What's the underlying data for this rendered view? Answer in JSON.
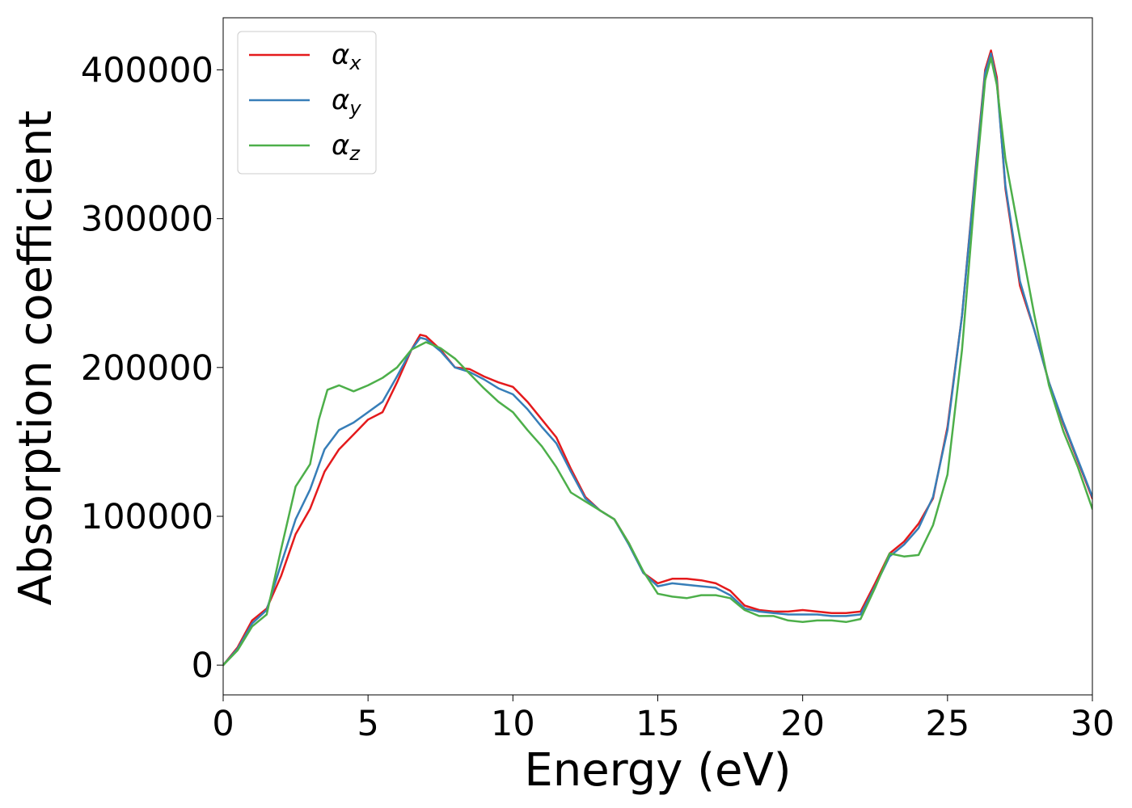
{
  "chart_data": {
    "type": "line",
    "title": "",
    "xlabel": "Energy (eV)",
    "ylabel": "Absorption coefficient",
    "xlim": [
      0,
      30
    ],
    "ylim": [
      -20000,
      435000
    ],
    "xticks": [
      0,
      5,
      10,
      15,
      20,
      25,
      30
    ],
    "yticks": [
      0,
      100000,
      200000,
      300000,
      400000
    ],
    "grid": false,
    "legend_position": "top-left",
    "series": [
      {
        "name": "α_x",
        "legend_base": "α",
        "legend_sub": "x",
        "color": "#e41a1c",
        "x": [
          0,
          0.5,
          1.0,
          1.5,
          2.0,
          2.5,
          3.0,
          3.5,
          4.0,
          4.5,
          5.0,
          5.5,
          6.0,
          6.5,
          6.8,
          7.0,
          7.5,
          8.0,
          8.5,
          9.0,
          9.5,
          10.0,
          10.5,
          11.0,
          11.5,
          12.0,
          12.5,
          13.0,
          13.5,
          14.0,
          14.5,
          15.0,
          15.5,
          16.0,
          16.5,
          17.0,
          17.5,
          18.0,
          18.5,
          19.0,
          19.5,
          20.0,
          20.5,
          21.0,
          21.5,
          22.0,
          22.5,
          23.0,
          23.5,
          24.0,
          24.5,
          25.0,
          25.5,
          26.0,
          26.3,
          26.5,
          26.7,
          27.0,
          27.5,
          28.0,
          28.5,
          29.0,
          29.5,
          30.0
        ],
        "y": [
          0,
          12000,
          30000,
          38000,
          60000,
          88000,
          105000,
          130000,
          145000,
          155000,
          165000,
          170000,
          190000,
          212000,
          222000,
          221000,
          212000,
          200000,
          199000,
          194000,
          190000,
          187000,
          177000,
          165000,
          153000,
          132000,
          113000,
          104000,
          98000,
          82000,
          62000,
          55000,
          58000,
          58000,
          57000,
          55000,
          50000,
          40000,
          37000,
          36000,
          36000,
          37000,
          36000,
          35000,
          35000,
          36000,
          55000,
          75000,
          83000,
          95000,
          112000,
          160000,
          235000,
          340000,
          400000,
          413000,
          395000,
          320000,
          255000,
          225000,
          190000,
          162000,
          137000,
          112000
        ]
      },
      {
        "name": "α_y",
        "legend_base": "α",
        "legend_sub": "y",
        "color": "#377eb8",
        "x": [
          0,
          0.5,
          1.0,
          1.5,
          2.0,
          2.5,
          3.0,
          3.5,
          4.0,
          4.5,
          5.0,
          5.5,
          6.0,
          6.5,
          6.8,
          7.0,
          7.5,
          8.0,
          8.5,
          9.0,
          9.5,
          10.0,
          10.5,
          11.0,
          11.5,
          12.0,
          12.5,
          13.0,
          13.5,
          14.0,
          14.5,
          15.0,
          15.5,
          16.0,
          16.5,
          17.0,
          17.5,
          18.0,
          18.5,
          19.0,
          19.5,
          20.0,
          20.5,
          21.0,
          21.5,
          22.0,
          22.5,
          23.0,
          23.5,
          24.0,
          24.5,
          25.0,
          25.5,
          26.0,
          26.3,
          26.5,
          26.7,
          27.0,
          27.5,
          28.0,
          28.5,
          29.0,
          29.5,
          30.0
        ],
        "y": [
          0,
          11000,
          28000,
          37000,
          68000,
          98000,
          118000,
          145000,
          158000,
          163000,
          170000,
          177000,
          194000,
          212000,
          220000,
          219000,
          211000,
          200000,
          197000,
          192000,
          186000,
          182000,
          172000,
          160000,
          149000,
          130000,
          112000,
          104000,
          98000,
          81000,
          62000,
          53000,
          55000,
          54000,
          53000,
          52000,
          47000,
          38000,
          36000,
          35000,
          34000,
          34000,
          34000,
          33000,
          33000,
          34000,
          53000,
          73000,
          81000,
          92000,
          113000,
          158000,
          235000,
          338000,
          398000,
          411000,
          392000,
          322000,
          258000,
          225000,
          190000,
          163000,
          138000,
          113000
        ]
      },
      {
        "name": "α_z",
        "legend_base": "α",
        "legend_sub": "z",
        "color": "#4daf4a",
        "x": [
          0,
          0.5,
          1.0,
          1.5,
          2.0,
          2.5,
          3.0,
          3.3,
          3.6,
          4.0,
          4.5,
          5.0,
          5.5,
          6.0,
          6.5,
          7.0,
          7.5,
          8.0,
          8.5,
          9.0,
          9.5,
          10.0,
          10.5,
          11.0,
          11.5,
          12.0,
          12.5,
          13.0,
          13.5,
          14.0,
          14.5,
          15.0,
          15.5,
          16.0,
          16.5,
          17.0,
          17.5,
          18.0,
          18.5,
          19.0,
          19.5,
          20.0,
          20.5,
          21.0,
          21.5,
          22.0,
          22.5,
          23.0,
          23.5,
          24.0,
          24.5,
          25.0,
          25.5,
          26.0,
          26.3,
          26.5,
          26.7,
          27.0,
          27.5,
          28.0,
          28.5,
          29.0,
          29.5,
          30.0
        ],
        "y": [
          0,
          10000,
          26000,
          34000,
          78000,
          120000,
          135000,
          165000,
          185000,
          188000,
          184000,
          188000,
          193000,
          200000,
          212000,
          217000,
          213000,
          206000,
          196000,
          186000,
          177000,
          170000,
          158000,
          147000,
          133000,
          116000,
          110000,
          104000,
          98000,
          82000,
          63000,
          48000,
          46000,
          45000,
          47000,
          47000,
          45000,
          37000,
          33000,
          33000,
          30000,
          29000,
          30000,
          30000,
          29000,
          31000,
          52000,
          75000,
          73000,
          74000,
          94000,
          128000,
          212000,
          330000,
          393000,
          408000,
          390000,
          340000,
          287000,
          235000,
          188000,
          157000,
          133000,
          105000
        ]
      }
    ]
  }
}
